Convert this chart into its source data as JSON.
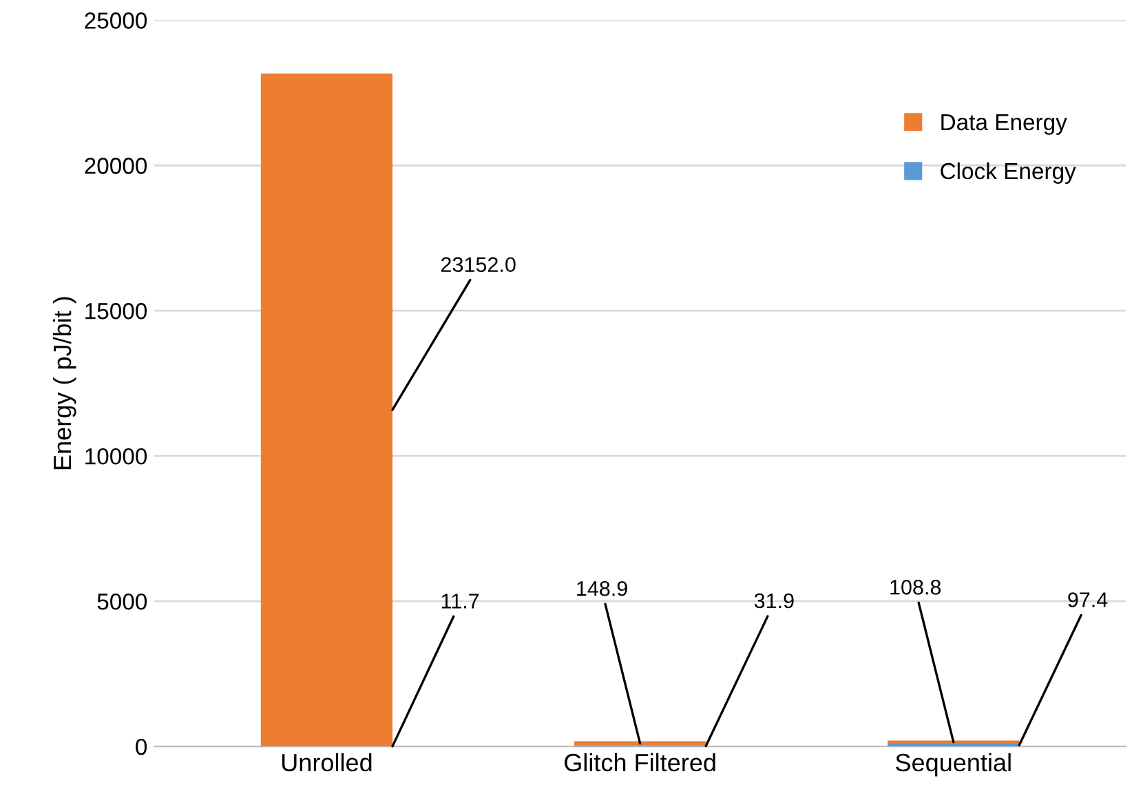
{
  "chart_data": {
    "type": "bar",
    "stacked": true,
    "ylabel": "Energy ( pJ/bit )",
    "categories": [
      "Unrolled",
      "Glitch Filtered",
      "Sequential"
    ],
    "series": [
      {
        "name": "Clock Energy",
        "color": "#5b9bd5",
        "values": [
          11.7,
          31.9,
          97.4
        ],
        "value_labels": [
          "11.7",
          "31.9",
          "97.4"
        ]
      },
      {
        "name": "Data Energy",
        "color": "#ed7d31",
        "values": [
          23152.0,
          148.9,
          108.8
        ],
        "value_labels": [
          "23152.0",
          "148.9",
          "108.8"
        ]
      }
    ],
    "ylim": [
      0,
      25000
    ],
    "yticks": [
      0,
      5000,
      10000,
      15000,
      20000,
      25000
    ],
    "grid": "y",
    "legend": "top right"
  }
}
